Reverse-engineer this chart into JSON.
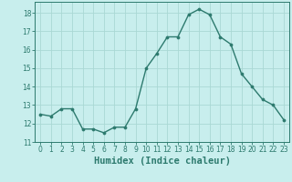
{
  "x": [
    0,
    1,
    2,
    3,
    4,
    5,
    6,
    7,
    8,
    9,
    10,
    11,
    12,
    13,
    14,
    15,
    16,
    17,
    18,
    19,
    20,
    21,
    22,
    23
  ],
  "y": [
    12.5,
    12.4,
    12.8,
    12.8,
    11.7,
    11.7,
    11.5,
    11.8,
    11.8,
    12.8,
    15.0,
    15.8,
    16.7,
    16.7,
    17.9,
    18.2,
    17.9,
    16.7,
    16.3,
    14.7,
    14.0,
    13.3,
    13.0,
    12.2
  ],
  "line_color": "#2d7a6e",
  "marker_color": "#2d7a6e",
  "bg_color": "#c8eeed",
  "grid_color": "#aad8d4",
  "xlabel": "Humidex (Indice chaleur)",
  "xlim": [
    -0.5,
    23.5
  ],
  "ylim": [
    11,
    18.6
  ],
  "yticks": [
    11,
    12,
    13,
    14,
    15,
    16,
    17,
    18
  ],
  "xticks": [
    0,
    1,
    2,
    3,
    4,
    5,
    6,
    7,
    8,
    9,
    10,
    11,
    12,
    13,
    14,
    15,
    16,
    17,
    18,
    19,
    20,
    21,
    22,
    23
  ],
  "tick_fontsize": 5.5,
  "label_fontsize": 7.5,
  "marker_size": 2.2,
  "line_width": 1.0
}
